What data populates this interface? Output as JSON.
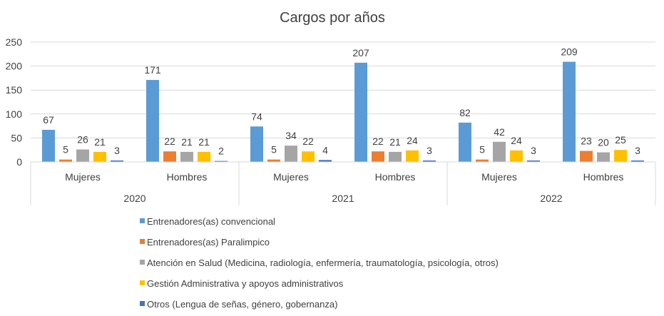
{
  "chart_data": {
    "type": "bar",
    "title": "Cargos por años",
    "yticks": [
      "0",
      "50",
      "100",
      "150",
      "200",
      "250"
    ],
    "ylim": [
      0,
      250
    ],
    "grid": true,
    "legend_position": "bottom",
    "years": [
      "2020",
      "2021",
      "2022"
    ],
    "categories": [
      "Mujeres",
      "Hombres",
      "Mujeres",
      "Hombres",
      "Mujeres",
      "Hombres"
    ],
    "series": [
      {
        "name": "Entrenadores(as) convencional",
        "color": "#5B9BD5",
        "values": [
          67,
          171,
          74,
          207,
          82,
          209
        ]
      },
      {
        "name": "Entrenadores(as) Paralimpico",
        "color": "#ED7D31",
        "values": [
          5,
          22,
          5,
          22,
          5,
          23
        ]
      },
      {
        "name": "Atención en Salud (Medicina, radiología, enfermería, traumatología, psicología, otros)",
        "color": "#A5A5A5",
        "values": [
          26,
          21,
          34,
          21,
          42,
          20
        ]
      },
      {
        "name": "Gestión Administrativa y apoyos administrativos",
        "color": "#FFC000",
        "values": [
          21,
          21,
          22,
          24,
          24,
          25
        ]
      },
      {
        "name": "Otros (Lengua de señas, género, gobernanza)",
        "color": "#4472C4",
        "values": [
          3,
          2,
          4,
          3,
          3,
          3
        ]
      }
    ]
  }
}
